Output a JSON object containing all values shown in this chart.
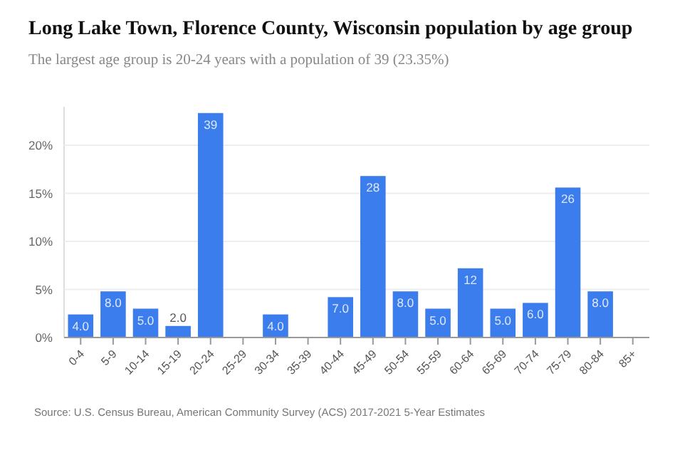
{
  "chart_data": {
    "type": "bar",
    "title": "Long Lake Town, Florence County, Wisconsin population by age group",
    "subtitle": "The largest age group is 20-24 years with a population of 39 (23.35%)",
    "categories": [
      "0-4",
      "5-9",
      "10-14",
      "15-19",
      "20-24",
      "25-29",
      "30-34",
      "35-39",
      "40-44",
      "45-49",
      "50-54",
      "55-59",
      "60-64",
      "65-69",
      "70-74",
      "75-79",
      "80-84",
      "85+"
    ],
    "values": [
      2.4,
      4.8,
      3.0,
      1.2,
      23.35,
      0,
      2.4,
      0,
      4.2,
      16.8,
      4.8,
      3.0,
      7.2,
      3.0,
      3.6,
      15.6,
      4.8,
      0
    ],
    "color": "#3b7ded",
    "ylim": [
      0,
      24
    ],
    "yticks": [
      {
        "value": 0,
        "label": "0%"
      },
      {
        "value": 5,
        "label": "5%"
      },
      {
        "value": 10,
        "label": "10%"
      },
      {
        "value": 15,
        "label": "15%"
      },
      {
        "value": 20,
        "label": "20%"
      }
    ],
    "grid": "y",
    "annotations": [
      {
        "text": "4.0",
        "x": "0-4",
        "y": 2.4
      },
      {
        "text": "8.0",
        "x": "5-9",
        "y": 4.8
      },
      {
        "text": "5.0",
        "x": "10-14",
        "y": 3.0
      },
      {
        "text": "2.0",
        "x": "15-19",
        "y": 1.2
      },
      {
        "text": "39",
        "x": "20-24",
        "y": 23.35
      },
      {
        "text": "4.0",
        "x": "30-34",
        "y": 2.4
      },
      {
        "text": "7.0",
        "x": "40-44",
        "y": 4.2
      },
      {
        "text": "28",
        "x": "45-49",
        "y": 16.8
      },
      {
        "text": "8.0",
        "x": "50-54",
        "y": 4.8
      },
      {
        "text": "5.0",
        "x": "55-59",
        "y": 3.0
      },
      {
        "text": "12",
        "x": "60-64",
        "y": 7.2
      },
      {
        "text": "5.0",
        "x": "65-69",
        "y": 3.0
      },
      {
        "text": "6.0",
        "x": "70-74",
        "y": 3.6
      },
      {
        "text": "26",
        "x": "75-79",
        "y": 15.6
      },
      {
        "text": "8.0",
        "x": "80-84",
        "y": 4.8
      },
      "Source: U.S. Census Bureau, American Community Survey (ACS) 2017-2021 5-Year Estimates"
    ]
  }
}
